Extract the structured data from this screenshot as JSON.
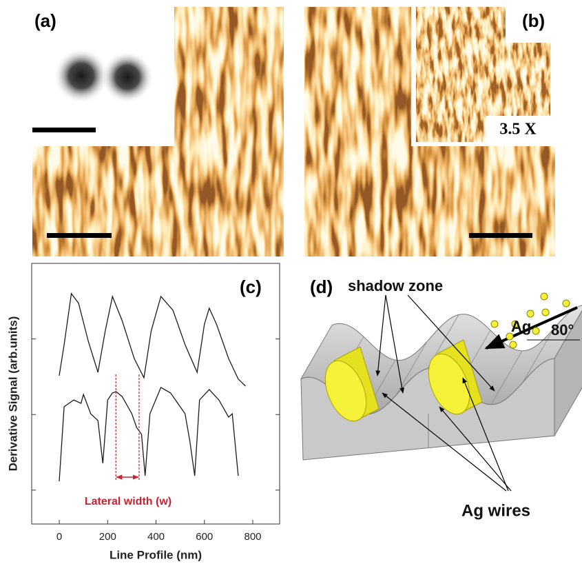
{
  "figure": {
    "panel_a": "(a)",
    "panel_b": "(b)",
    "panel_c": "(c)",
    "panel_d": "(d)",
    "inset_magnification": "3.5 X",
    "diagram": {
      "shadow_zone": "shadow zone",
      "source": "Ag",
      "angle": "80°",
      "wires": "Ag wires"
    }
  },
  "chart_data": {
    "type": "line",
    "x_label": "Line Profile (nm)",
    "y_label": "Derivative Signal (arb.units)",
    "xlim": [
      -114,
      911
    ],
    "xticks": [
      0,
      200,
      400,
      600,
      800
    ],
    "ylim": [
      0,
      100
    ],
    "color": "#1a1a1a",
    "series": [
      {
        "x": [
          0,
          20,
          50,
          80,
          120,
          160,
          190,
          220,
          260,
          310,
          350,
          380,
          420,
          470,
          520,
          570,
          600,
          620,
          650,
          700,
          740,
          770
        ],
        "values": [
          56.9,
          68.8,
          88.4,
          84.7,
          70.1,
          58.2,
          74.1,
          87.3,
          78.0,
          63.5,
          56.1,
          74.1,
          87.3,
          82.0,
          68.8,
          58.2,
          76.7,
          82.8,
          76.7,
          63.5,
          55.6,
          52.9
        ]
      },
      {
        "x": [
          0,
          20,
          60,
          90,
          100,
          130,
          160,
          180,
          200,
          220,
          235,
          260,
          300,
          320,
          340,
          355,
          375,
          420,
          460,
          520,
          540,
          560,
          580,
          620,
          660,
          700,
          715,
          740
        ],
        "values": [
          16.4,
          45.0,
          47.6,
          46.3,
          49.7,
          42.3,
          39.7,
          23.3,
          47.6,
          50.3,
          50.8,
          48.9,
          42.3,
          37.0,
          34.4,
          18.5,
          42.3,
          52.4,
          50.3,
          42.3,
          31.7,
          18.5,
          47.6,
          51.6,
          47.6,
          41.0,
          42.3,
          18.5
        ]
      }
    ],
    "annotation": {
      "text": "Lateral width (w)",
      "x": [
        234,
        330
      ],
      "color": "#d0202e"
    }
  }
}
